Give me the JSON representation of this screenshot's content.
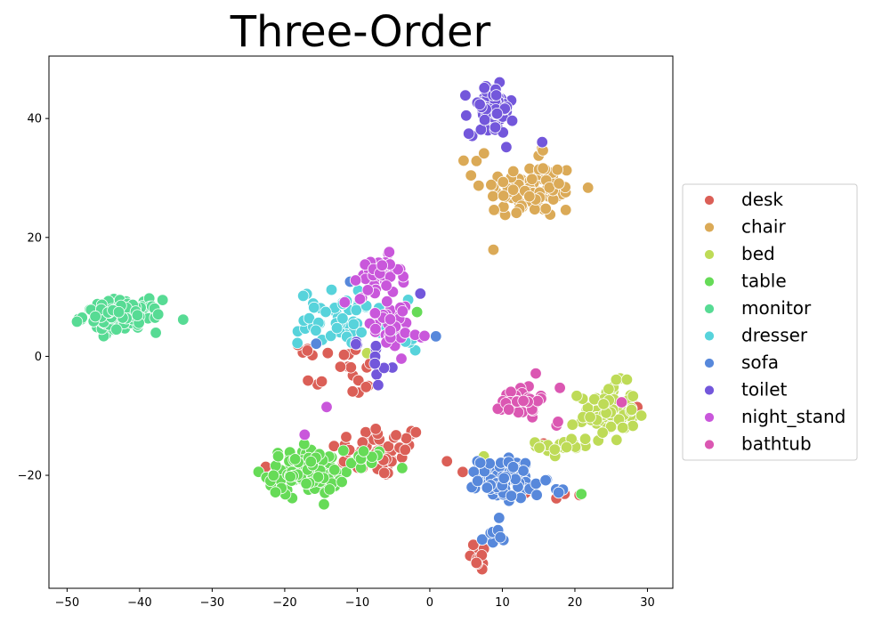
{
  "chart_data": {
    "type": "scatter",
    "title": "Three-Order",
    "xlabel": "",
    "ylabel": "",
    "xlim": [
      -52.5,
      33.5
    ],
    "ylim": [
      -39,
      50.5
    ],
    "xticks": [
      -50,
      -40,
      -30,
      -20,
      -10,
      0,
      10,
      20,
      30
    ],
    "yticks": [
      -20,
      0,
      20,
      40
    ],
    "xtick_labels": [
      "−50",
      "−40",
      "−30",
      "−20",
      "−10",
      "0",
      "10",
      "20",
      "30"
    ],
    "ytick_labels": [
      "−20",
      "0",
      "20",
      "40"
    ],
    "grid": false,
    "legend_position": "right-outside",
    "series": [
      {
        "name": "desk",
        "color": "#db5f57",
        "clusters": [
          {
            "cx": -7,
            "cy": -16,
            "sx": 4.5,
            "sy": 3.0,
            "n": 50
          },
          {
            "cx": 7,
            "cy": -33.5,
            "sx": 1.0,
            "sy": 1.8,
            "n": 14
          },
          {
            "cx": -12,
            "cy": -3,
            "sx": 3.5,
            "sy": 3.5,
            "n": 18
          },
          {
            "cx": -17,
            "cy": 1.5,
            "sx": 1.5,
            "sy": 1.0,
            "n": 5
          },
          {
            "cx": 18,
            "cy": -23.5,
            "sx": 2.5,
            "sy": 0.6,
            "n": 4
          },
          {
            "cx": 15.5,
            "cy": -15,
            "sx": 0.8,
            "sy": 0.8,
            "n": 3
          },
          {
            "cx": 4,
            "cy": -19.5,
            "sx": 0.4,
            "sy": 0.4,
            "n": 1
          },
          {
            "cx": -20.5,
            "cy": -19,
            "sx": 0.7,
            "sy": 1.2,
            "n": 3
          },
          {
            "cx": 28.5,
            "cy": -8.5,
            "sx": 0.5,
            "sy": 0.5,
            "n": 2
          }
        ]
      },
      {
        "name": "chair",
        "color": "#dbaa57",
        "clusters": [
          {
            "cx": 14,
            "cy": 28,
            "sx": 4.5,
            "sy": 3.2,
            "n": 90
          },
          {
            "cx": 6,
            "cy": 33,
            "sx": 1.2,
            "sy": 1.2,
            "n": 3
          },
          {
            "cx": 15.5,
            "cy": 34.5,
            "sx": 0.8,
            "sy": 0.8,
            "n": 3
          }
        ]
      },
      {
        "name": "bed",
        "color": "#bedb57",
        "clusters": [
          {
            "cx": 24.5,
            "cy": -9.5,
            "sx": 2.6,
            "sy": 3.2,
            "n": 70
          },
          {
            "cx": 18.5,
            "cy": -15,
            "sx": 2.5,
            "sy": 1.5,
            "n": 20
          },
          {
            "cx": -9,
            "cy": 0.5,
            "sx": 0.5,
            "sy": 0.5,
            "n": 1
          },
          {
            "cx": 7,
            "cy": -17,
            "sx": 0.5,
            "sy": 0.5,
            "n": 1
          }
        ]
      },
      {
        "name": "table",
        "color": "#66db57",
        "clusters": [
          {
            "cx": -17,
            "cy": -19.5,
            "sx": 3.5,
            "sy": 2.5,
            "n": 110
          },
          {
            "cx": -8,
            "cy": -17.5,
            "sx": 2.0,
            "sy": 1.5,
            "n": 10
          },
          {
            "cx": 20.5,
            "cy": -23.5,
            "sx": 0.5,
            "sy": 0.5,
            "n": 1
          },
          {
            "cx": -2,
            "cy": 7.5,
            "sx": 0.5,
            "sy": 0.5,
            "n": 1
          }
        ]
      },
      {
        "name": "monitor",
        "color": "#57db94",
        "clusters": [
          {
            "cx": -42.5,
            "cy": 6.8,
            "sx": 3.5,
            "sy": 1.8,
            "n": 100
          },
          {
            "cx": -34,
            "cy": 6.8,
            "sx": 0.3,
            "sy": 0.3,
            "n": 1
          },
          {
            "cx": -9,
            "cy": 11,
            "sx": 0.8,
            "sy": 0.8,
            "n": 2
          }
        ]
      },
      {
        "name": "dresser",
        "color": "#57d3db",
        "clusters": [
          {
            "cx": -12,
            "cy": 6.5,
            "sx": 4.0,
            "sy": 3.0,
            "n": 55
          },
          {
            "cx": -3.5,
            "cy": 3,
            "sx": 1.5,
            "sy": 1.5,
            "n": 5
          }
        ]
      },
      {
        "name": "sofa",
        "color": "#5788db",
        "clusters": [
          {
            "cx": 10.5,
            "cy": -20.5,
            "sx": 2.5,
            "sy": 2.3,
            "n": 90
          },
          {
            "cx": 8.5,
            "cy": -31,
            "sx": 0.9,
            "sy": 1.5,
            "n": 8
          },
          {
            "cx": 16.5,
            "cy": -23,
            "sx": 1.2,
            "sy": 0.5,
            "n": 4
          },
          {
            "cx": 1,
            "cy": 3,
            "sx": 0.4,
            "sy": 0.4,
            "n": 1
          },
          {
            "cx": -16,
            "cy": 2,
            "sx": 0.5,
            "sy": 0.5,
            "n": 1
          },
          {
            "cx": -11,
            "cy": 13,
            "sx": 0.5,
            "sy": 0.5,
            "n": 1
          }
        ]
      },
      {
        "name": "toilet",
        "color": "#7357db",
        "clusters": [
          {
            "cx": 8.5,
            "cy": 41.5,
            "sx": 2.0,
            "sy": 2.8,
            "n": 90
          },
          {
            "cx": -6.5,
            "cy": -1.5,
            "sx": 1.2,
            "sy": 1.8,
            "n": 8
          },
          {
            "cx": -10,
            "cy": 2,
            "sx": 0.8,
            "sy": 1.0,
            "n": 3
          },
          {
            "cx": -1.5,
            "cy": 10.5,
            "sx": 0.4,
            "sy": 0.4,
            "n": 1
          },
          {
            "cx": 15,
            "cy": 36,
            "sx": 0.4,
            "sy": 0.4,
            "n": 1
          }
        ]
      },
      {
        "name": "night_stand",
        "color": "#c957db",
        "clusters": [
          {
            "cx": -7,
            "cy": 13.5,
            "sx": 2.0,
            "sy": 2.2,
            "n": 40
          },
          {
            "cx": -6,
            "cy": 6.5,
            "sx": 3.0,
            "sy": 3.5,
            "n": 35
          },
          {
            "cx": -2,
            "cy": 3.5,
            "sx": 1.0,
            "sy": 0.6,
            "n": 4
          },
          {
            "cx": -17.5,
            "cy": -13,
            "sx": 0.4,
            "sy": 0.4,
            "n": 1
          },
          {
            "cx": -14,
            "cy": -8.5,
            "sx": 0.4,
            "sy": 0.4,
            "n": 1
          }
        ]
      },
      {
        "name": "bathtub",
        "color": "#db57b2",
        "clusters": [
          {
            "cx": 12.5,
            "cy": -7.5,
            "sx": 1.7,
            "sy": 1.8,
            "n": 45
          },
          {
            "cx": 17.5,
            "cy": -11.5,
            "sx": 0.5,
            "sy": 0.5,
            "n": 2
          },
          {
            "cx": 26.5,
            "cy": -7.5,
            "sx": 0.4,
            "sy": 0.4,
            "n": 1
          },
          {
            "cx": 17.8,
            "cy": -5.5,
            "sx": 0.4,
            "sy": 0.4,
            "n": 1
          }
        ]
      }
    ]
  }
}
